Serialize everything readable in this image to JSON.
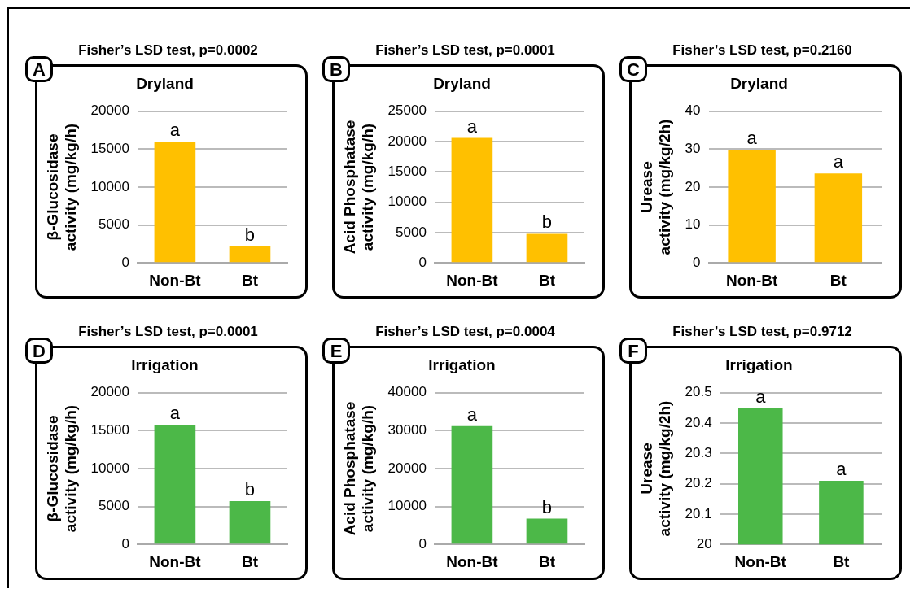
{
  "chart_data": [
    {
      "type": "bar",
      "title": "Fisher’s LSD test, p=0.0002",
      "subtitle": "Dryland",
      "ylabel": "β-Glucosidase\nactivity (mg/kg/h)",
      "categories": [
        "Non-Bt",
        "Bt"
      ],
      "values": [
        16000,
        2200
      ],
      "color": "#ffc000",
      "ylim": [
        0,
        20000
      ],
      "yticks": [
        0,
        5000,
        10000,
        15000,
        20000
      ],
      "grid": "y",
      "annotations": [
        "A",
        {
          "text": "a",
          "x": "Non-Bt",
          "y": 16000
        },
        {
          "text": "b",
          "x": "Bt",
          "y": 2200
        }
      ]
    },
    {
      "type": "bar",
      "title": "Fisher’s LSD test, p=0.0001",
      "subtitle": "Dryland",
      "ylabel": "Acid Phosphatase\nactivity (mg/kg/h)",
      "categories": [
        "Non-Bt",
        "Bt"
      ],
      "values": [
        20600,
        4800
      ],
      "color": "#ffc000",
      "ylim": [
        0,
        25000
      ],
      "yticks": [
        0,
        5000,
        10000,
        15000,
        20000,
        25000
      ],
      "grid": "y",
      "annotations": [
        "B",
        {
          "text": "a",
          "x": "Non-Bt",
          "y": 20600
        },
        {
          "text": "b",
          "x": "Bt",
          "y": 4800
        }
      ]
    },
    {
      "type": "bar",
      "title": "Fisher’s LSD test, p=0.2160",
      "subtitle": "Dryland",
      "ylabel": "Urease\nactivity (mg/kg/2h)",
      "categories": [
        "Non-Bt",
        "Bt"
      ],
      "values": [
        29.8,
        23.6
      ],
      "color": "#ffc000",
      "ylim": [
        0,
        40
      ],
      "yticks": [
        0,
        10,
        20,
        30,
        40
      ],
      "grid": "y",
      "annotations": [
        "C",
        {
          "text": "a",
          "x": "Non-Bt",
          "y": 29.8
        },
        {
          "text": "a",
          "x": "Bt",
          "y": 23.6
        }
      ]
    },
    {
      "type": "bar",
      "title": "Fisher’s LSD test, p=0.0001",
      "subtitle": "Irrigation",
      "ylabel": "β-Glucosidase\nactivity (mg/kg/h)",
      "categories": [
        "Non-Bt",
        "Bt"
      ],
      "values": [
        15800,
        5700
      ],
      "color": "#4cb848",
      "ylim": [
        0,
        20000
      ],
      "yticks": [
        0,
        5000,
        10000,
        15000,
        20000
      ],
      "grid": "y",
      "annotations": [
        "D",
        {
          "text": "a",
          "x": "Non-Bt",
          "y": 15800
        },
        {
          "text": "b",
          "x": "Bt",
          "y": 5700
        }
      ]
    },
    {
      "type": "bar",
      "title": "Fisher’s LSD test, p=0.0004",
      "subtitle": "Irrigation",
      "ylabel": "Acid Phosphatase\nactivity (mg/kg/h)",
      "categories": [
        "Non-Bt",
        "Bt"
      ],
      "values": [
        31200,
        6800
      ],
      "color": "#4cb848",
      "ylim": [
        0,
        40000
      ],
      "yticks": [
        0,
        10000,
        20000,
        30000,
        40000
      ],
      "grid": "y",
      "annotations": [
        "E",
        {
          "text": "a",
          "x": "Non-Bt",
          "y": 31200
        },
        {
          "text": "b",
          "x": "Bt",
          "y": 6800
        }
      ]
    },
    {
      "type": "bar",
      "title": "Fisher’s LSD test, p=0.9712",
      "subtitle": "Irrigation",
      "ylabel": "Urease\nactivity (mg/kg/2h)",
      "categories": [
        "Non-Bt",
        "Bt"
      ],
      "values": [
        20.45,
        20.21
      ],
      "color": "#4cb848",
      "ylim": [
        20,
        20.5
      ],
      "yticks": [
        20,
        20.1,
        20.2,
        20.3,
        20.4,
        20.5
      ],
      "grid": "y",
      "annotations": [
        "F",
        {
          "text": "a",
          "x": "Non-Bt",
          "y": 20.45
        },
        {
          "text": "a",
          "x": "Bt",
          "y": 20.21
        }
      ]
    }
  ]
}
